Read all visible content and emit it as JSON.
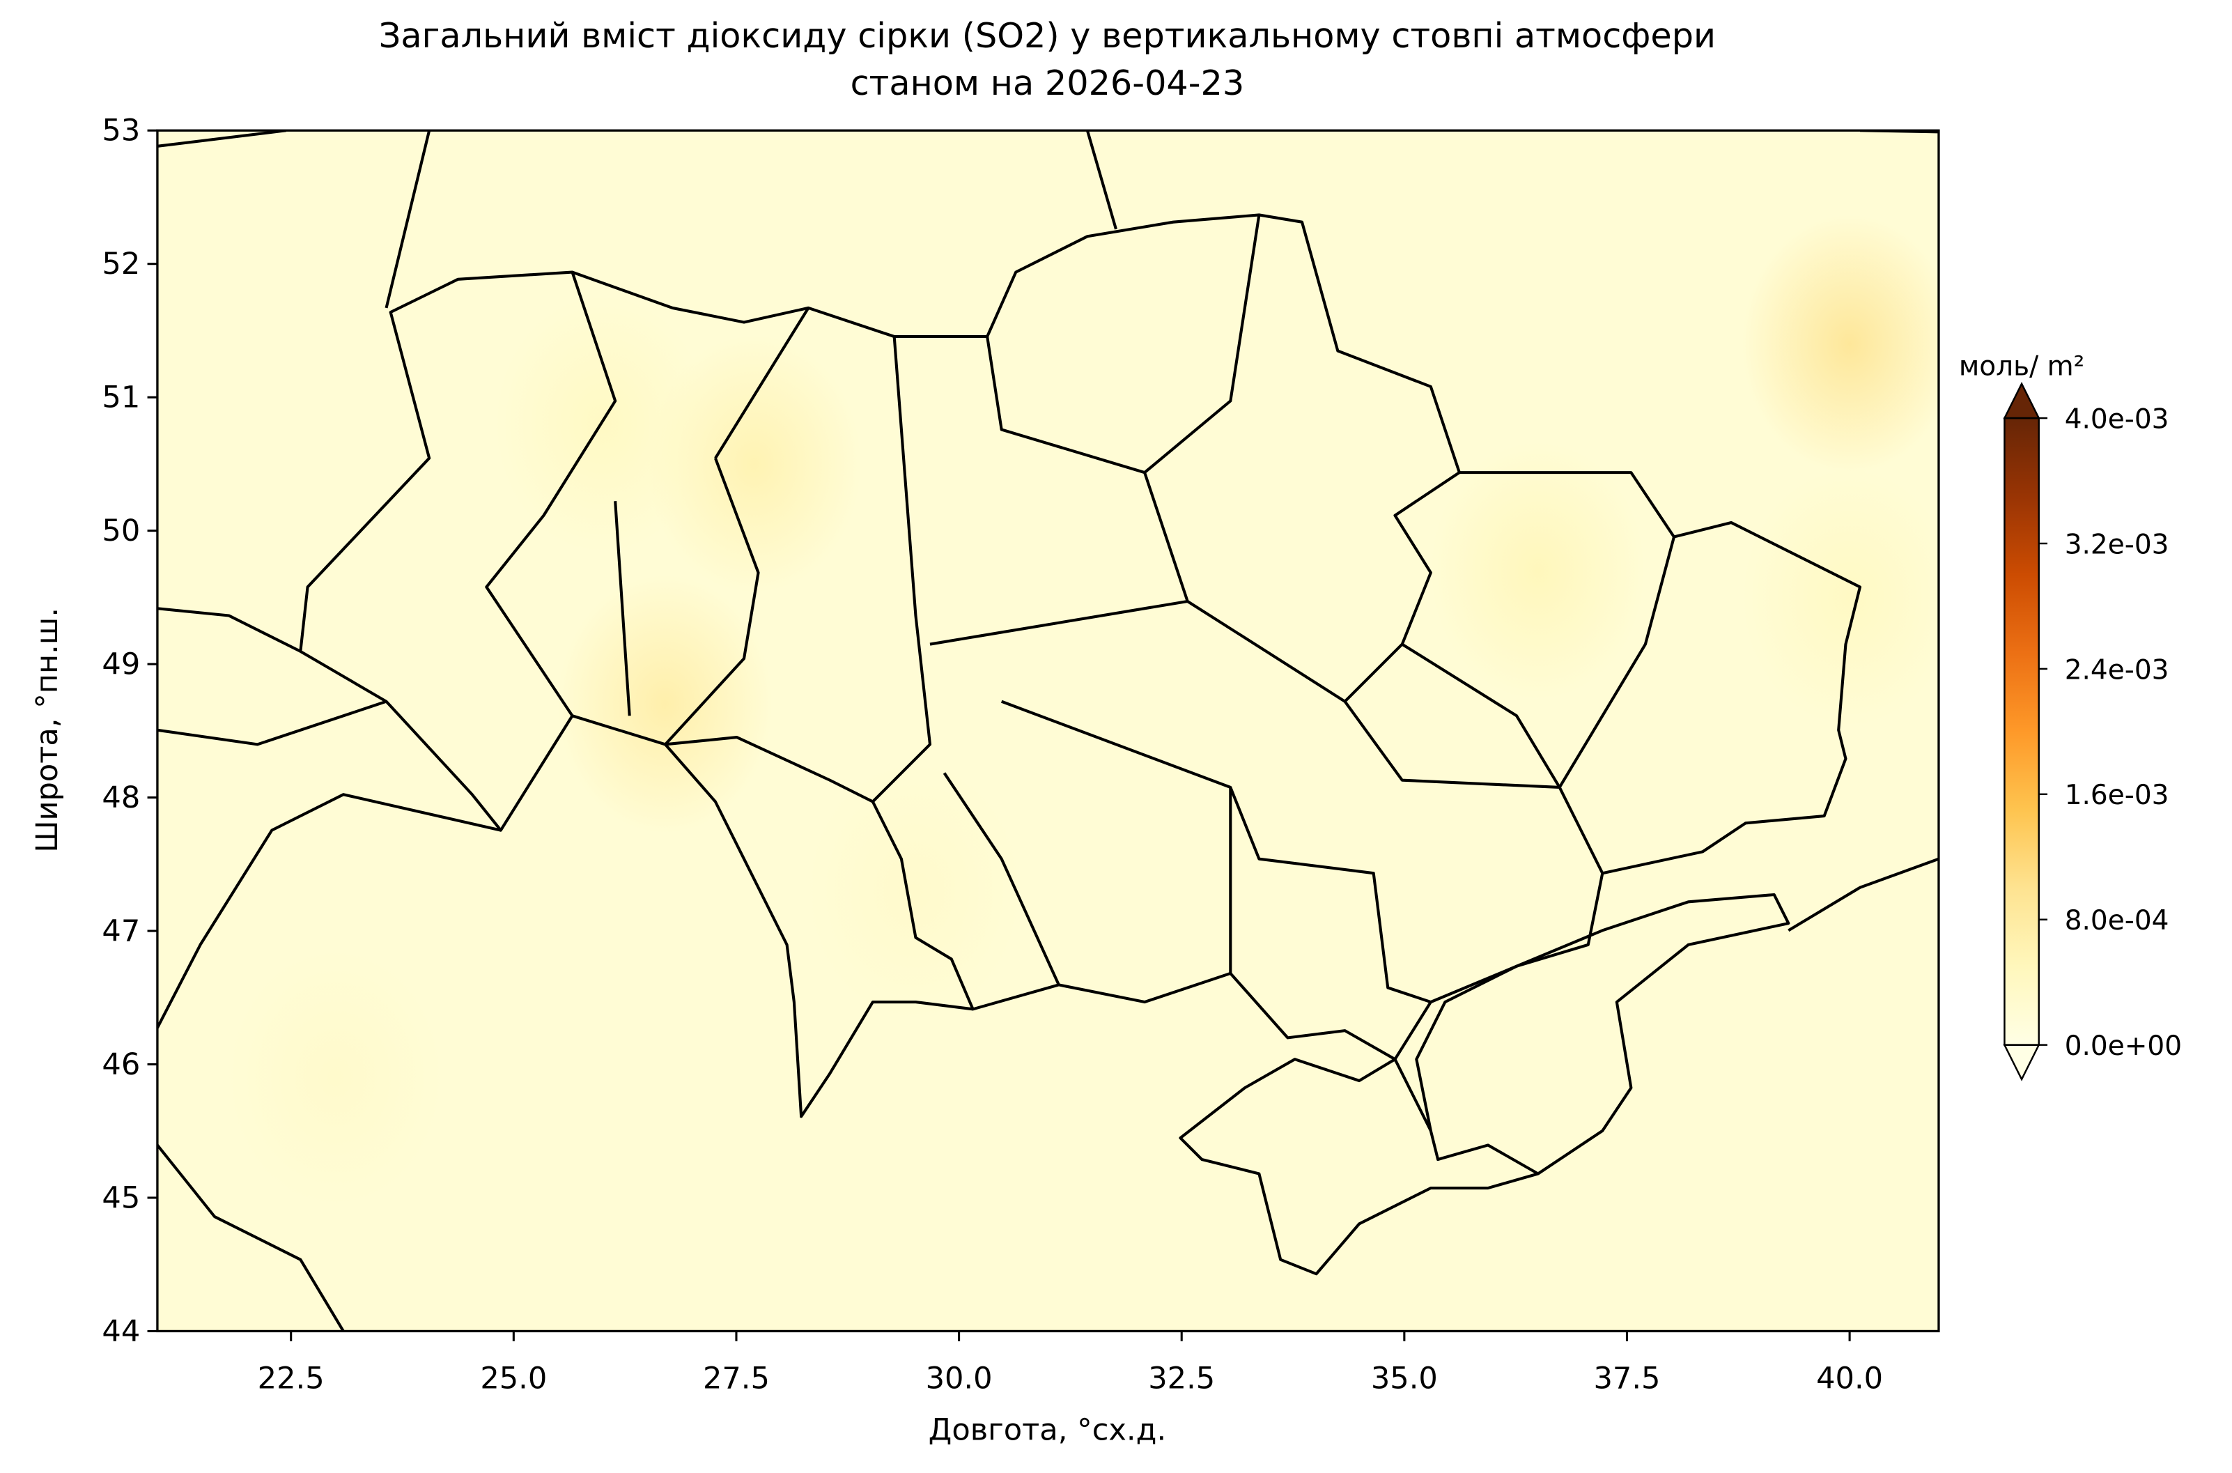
{
  "chart_data": {
    "type": "heatmap-map",
    "title": [
      "Загальний вміст діоксиду сірки (SO2) у вертикальному стовпі атмосфери",
      "станом на 2026-04-23"
    ],
    "xlabel": "Довгота, °сх.д.",
    "ylabel": "Широта, °пн.ш.",
    "xlim": [
      21,
      41
    ],
    "ylim": [
      44,
      53
    ],
    "xticks": [
      22.5,
      {
        "value": 25,
        "label": "25.0"
      },
      27.5,
      {
        "value": 30,
        "label": "30.0"
      },
      32.5,
      {
        "value": 35,
        "label": "35.0"
      },
      37.5,
      {
        "value": 40,
        "label": "40.0"
      }
    ],
    "yticks": [
      44,
      45,
      46,
      47,
      48,
      49,
      50,
      51,
      52,
      53
    ],
    "colorbar_label": "моль/ m²",
    "clim": [
      0,
      0.004
    ],
    "colorbar_ticks": [
      {
        "value": 0,
        "label": "0.0e+00"
      },
      {
        "value": 0.0008,
        "label": "8.0e-04"
      },
      {
        "value": 0.0016,
        "label": "1.6e-03"
      },
      {
        "value": 0.0024,
        "label": "2.4e-03"
      },
      {
        "value": 0.0032,
        "label": "3.2e-03"
      },
      {
        "value": 0.004,
        "label": "4.0e-03"
      }
    ],
    "colormap": [
      "#ffffe5",
      "#fff7bc",
      "#fee391",
      "#fec44f",
      "#fe9929",
      "#ec7014",
      "#cc4c02",
      "#993404",
      "#662506"
    ],
    "background_value": 0.0002,
    "hotspots": {
      "x": [
        40,
        26.7,
        27.7,
        36.5,
        26,
        40,
        23,
        29.5
      ],
      "y": [
        51.4,
        48.7,
        50.5,
        49.7,
        50.8,
        49.5,
        45.9,
        47.3
      ],
      "values": [
        0.0009,
        0.0007,
        0.0006,
        0.0005,
        0.0004,
        0.0004,
        0.0003,
        0.0003
      ]
    }
  }
}
